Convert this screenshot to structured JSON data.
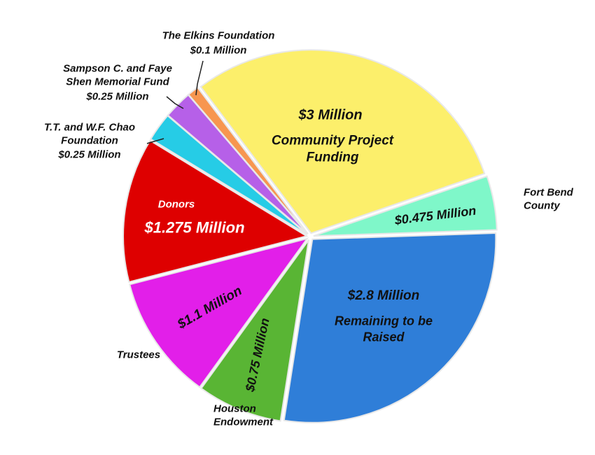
{
  "chart_data": {
    "type": "pie",
    "categories": [
      "Community Project Funding",
      "Fort Bend County",
      "Remaining to be Raised",
      "Houston Endowment",
      "Trustees",
      "Donors",
      "T.T. and W.F. Chao Foundation",
      "Sampson C. and Faye Shen Memorial Fund",
      "The Elkins Foundation"
    ],
    "values": [
      3,
      0.475,
      2.8,
      0.75,
      1.1,
      1.275,
      0.25,
      0.25,
      0.1
    ],
    "value_labels": [
      "$3 Million",
      "$0.475 Million",
      "$2.8 Million",
      "$0.75 Million",
      "$1.1 Million",
      "$1.275 Million",
      "$0.25 Million",
      "$0.25 Million",
      "$0.1 Million"
    ],
    "colors": [
      "#fcef6b",
      "#7ff7c9",
      "#2f7ed8",
      "#59b534",
      "#e21fe9",
      "#de0000",
      "#26cce6",
      "#b660e8",
      "#f7964f"
    ]
  }
}
